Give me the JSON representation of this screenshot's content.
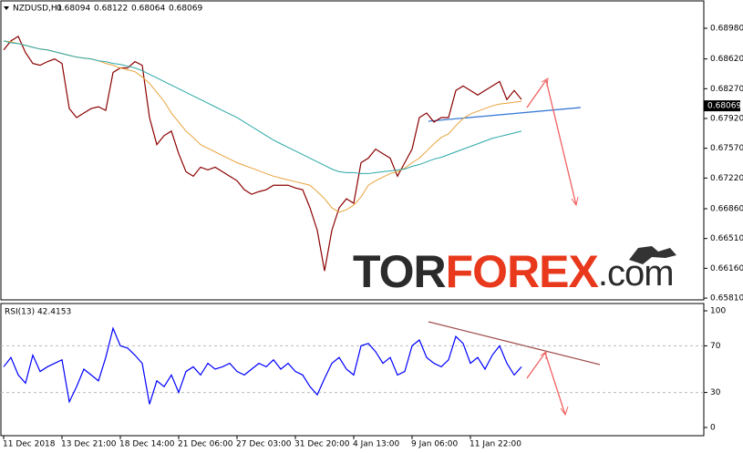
{
  "chart_data": [
    {
      "type": "line",
      "symbol": "NZDUSD,H1",
      "ohlc": [
        0.68094,
        0.68122,
        0.68064,
        0.68069
      ],
      "ylim": [
        0.658,
        0.6928
      ],
      "yticks": [
        {
          "value": 0.6898,
          "label": "0.68980"
        },
        {
          "value": 0.6862,
          "label": "0.68620"
        },
        {
          "value": 0.6827,
          "label": "0.68270"
        },
        {
          "value": 0.6792,
          "label": "0.67920"
        },
        {
          "value": 0.6757,
          "label": "0.67570"
        },
        {
          "value": 0.6722,
          "label": "0.67220"
        },
        {
          "value": 0.6686,
          "label": "0.66860"
        },
        {
          "value": 0.6651,
          "label": "0.66510"
        },
        {
          "value": 0.6616,
          "label": "0.66160"
        },
        {
          "value": 0.6581,
          "label": "0.65810"
        }
      ],
      "watermark": [
        "TOR",
        "FOREX",
        ".com"
      ],
      "series": [
        {
          "color": "#8b0000",
          "values": [
            0.68726,
            0.68832,
            0.68885,
            0.68694,
            0.68567,
            0.68545,
            0.68588,
            0.6862,
            0.68567,
            0.68037,
            0.67931,
            0.67984,
            0.68037,
            0.68058,
            0.68015,
            0.68461,
            0.68514,
            0.68514,
            0.68588,
            0.68545,
            0.67931,
            0.67613,
            0.67719,
            0.67772,
            0.67507,
            0.67295,
            0.67242,
            0.67348,
            0.67316,
            0.67348,
            0.67295,
            0.67242,
            0.67189,
            0.67083,
            0.6703,
            0.67061,
            0.67083,
            0.67136,
            0.67136,
            0.67136,
            0.67104,
            0.67083,
            0.66871,
            0.66606,
            0.66129,
            0.66606,
            0.66871,
            0.66977,
            0.66924,
            0.67401,
            0.67454,
            0.6756,
            0.67507,
            0.67454,
            0.67242,
            0.67401,
            0.6756,
            0.67931,
            0.67984,
            0.67878,
            0.67931,
            0.67931,
            0.68249,
            0.68302,
            0.68249,
            0.68196,
            0.68249,
            0.68302,
            0.68355,
            0.68143,
            0.68249,
            0.68143
          ]
        },
        {
          "color": "#e8a33c",
          "values": [
            0.68832,
            0.68821,
            0.688,
            0.68779,
            0.68757,
            0.68736,
            0.68726,
            0.68704,
            0.68683,
            0.68662,
            0.68641,
            0.6863,
            0.6862,
            0.68598,
            0.68567,
            0.68545,
            0.68514,
            0.68492,
            0.68471,
            0.68408,
            0.68333,
            0.68227,
            0.68121,
            0.67984,
            0.67878,
            0.67772,
            0.67697,
            0.67613,
            0.6757,
            0.67528,
            0.67485,
            0.67443,
            0.67401,
            0.67369,
            0.67337,
            0.67305,
            0.67273,
            0.67242,
            0.6722,
            0.67199,
            0.67178,
            0.67157,
            0.67136,
            0.67061,
            0.66977,
            0.66871,
            0.66818,
            0.66849,
            0.66902,
            0.66998,
            0.67136,
            0.67189,
            0.67231,
            0.67273,
            0.67295,
            0.67337,
            0.67401,
            0.67454,
            0.67538,
            0.67623,
            0.67697,
            0.6774,
            0.67835,
            0.6792,
            0.67973,
            0.68005,
            0.68037,
            0.68068,
            0.6809,
            0.681,
            0.68111,
            0.68121
          ]
        },
        {
          "color": "#2aa7a7",
          "values": [
            0.68832,
            0.6881,
            0.688,
            0.68779,
            0.68757,
            0.68736,
            0.68726,
            0.68704,
            0.68683,
            0.68662,
            0.68641,
            0.6863,
            0.6862,
            0.68598,
            0.68588,
            0.68567,
            0.68556,
            0.68535,
            0.68514,
            0.68482,
            0.68439,
            0.68397,
            0.68355,
            0.68312,
            0.6827,
            0.68227,
            0.68185,
            0.68143,
            0.681,
            0.68058,
            0.68015,
            0.67973,
            0.67931,
            0.67878,
            0.67825,
            0.67772,
            0.67719,
            0.67666,
            0.67623,
            0.67581,
            0.67538,
            0.67496,
            0.67454,
            0.67411,
            0.67369,
            0.67326,
            0.67295,
            0.67284,
            0.67284,
            0.67273,
            0.67273,
            0.67284,
            0.67295,
            0.67305,
            0.67316,
            0.67326,
            0.67358,
            0.67379,
            0.67411,
            0.67443,
            0.67464,
            0.67496,
            0.67528,
            0.6756,
            0.67591,
            0.67623,
            0.67655,
            0.67687,
            0.67708,
            0.67729,
            0.6775,
            0.67772
          ]
        }
      ]
    },
    {
      "type": "line",
      "title": "RSI(13) 42.4153",
      "ylim": [
        0,
        100
      ],
      "yticks": [
        100,
        70,
        30,
        0
      ],
      "levels": [
        70,
        30
      ],
      "categories": [
        "11 Dec 2018",
        null,
        null,
        null,
        null,
        null,
        null,
        null,
        "13 Dec 21:00",
        null,
        null,
        null,
        null,
        null,
        null,
        null,
        "18 Dec 14:00",
        null,
        null,
        null,
        null,
        null,
        null,
        null,
        "21 Dec 06:00",
        null,
        null,
        null,
        null,
        null,
        null,
        null,
        "27 Dec 03:00",
        null,
        null,
        null,
        null,
        null,
        null,
        null,
        "31 Dec 20:00",
        null,
        null,
        null,
        null,
        null,
        null,
        null,
        "4 Jan 13:00",
        null,
        null,
        null,
        null,
        null,
        null,
        null,
        "9 Jan 06:00",
        null,
        null,
        null,
        null,
        null,
        null,
        null,
        "11 Jan 22:00",
        null,
        null,
        null,
        null,
        null,
        null,
        null
      ],
      "series": [
        {
          "color": "#0000ff",
          "values": [
            52,
            60,
            45,
            38,
            62,
            48,
            52,
            55,
            58,
            22,
            35,
            50,
            45,
            40,
            60,
            85,
            70,
            68,
            62,
            55,
            20,
            40,
            35,
            45,
            30,
            48,
            52,
            45,
            55,
            50,
            52,
            55,
            48,
            45,
            50,
            55,
            52,
            58,
            50,
            55,
            48,
            45,
            35,
            28,
            42,
            55,
            60,
            50,
            45,
            70,
            72,
            65,
            55,
            60,
            45,
            48,
            70,
            75,
            60,
            55,
            52,
            58,
            78,
            72,
            55,
            60,
            50,
            62,
            70,
            55,
            45,
            52
          ]
        }
      ]
    }
  ]
}
